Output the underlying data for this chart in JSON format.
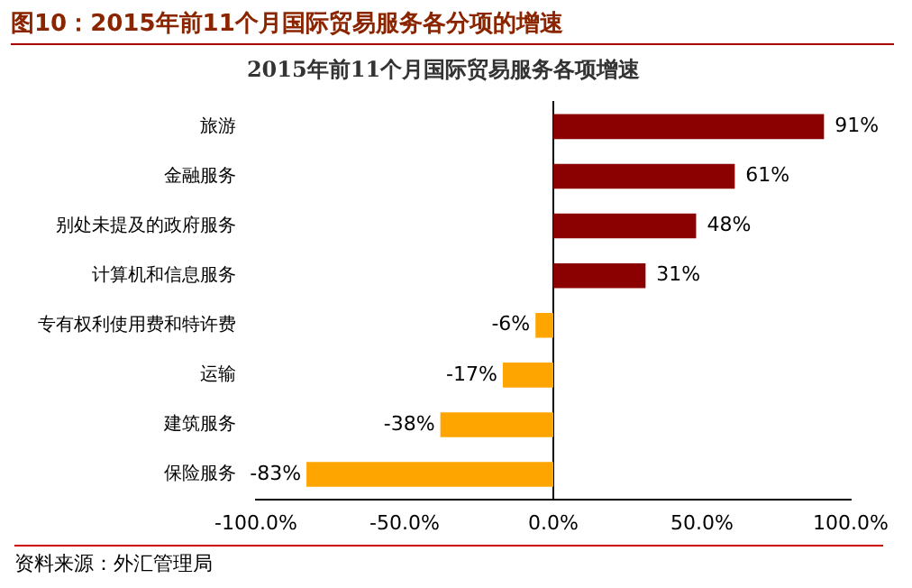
{
  "chart_data": {
    "type": "bar",
    "orientation": "horizontal",
    "title": "图10：2015年前11个月国际贸易服务各分项的增速",
    "subtitle": "2015年前11个月国际贸易服务各项增速",
    "categories": [
      "旅游",
      "金融服务",
      "别处未提及的政府服务",
      "计算机和信息服务",
      "专有权利使用费和特许费",
      "运输",
      "建筑服务",
      "保险服务"
    ],
    "values": [
      91,
      61,
      48,
      31,
      -6,
      -17,
      -38,
      -83
    ],
    "colors": [
      "#8b0000",
      "#8b0000",
      "#8b0000",
      "#8b0000",
      "#ffa500",
      "#ffa500",
      "#ffa500",
      "#ffa500"
    ],
    "value_labels": [
      "91%",
      "61%",
      "48%",
      "31%",
      "-6%",
      "-17%",
      "-38%",
      "-83%"
    ],
    "xlim": [
      -100,
      100
    ],
    "xticks": [
      {
        "value": -100,
        "label": "-100.0%"
      },
      {
        "value": -50,
        "label": "-50.0%"
      },
      {
        "value": 0,
        "label": "0.0%"
      },
      {
        "value": 50,
        "label": "50.0%"
      },
      {
        "value": 100,
        "label": "100.0%"
      }
    ],
    "legend": false,
    "annotations": [
      "资料来源：外汇管理局"
    ]
  }
}
